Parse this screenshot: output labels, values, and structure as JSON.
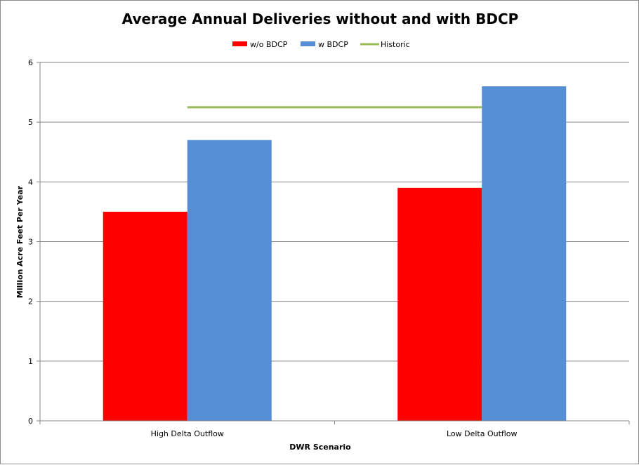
{
  "chart_data": {
    "type": "bar",
    "title": "Average Annual Deliveries without and with BDCP",
    "xlabel": "DWR Scenario",
    "ylabel": "Million Acre Feet Per Year",
    "categories": [
      "High Delta Outflow",
      "Low Delta Outflow"
    ],
    "series": [
      {
        "name": "w/o BDCP",
        "values": [
          3.5,
          3.9
        ],
        "color": "#ff0000"
      },
      {
        "name": "w BDCP",
        "values": [
          4.7,
          5.6
        ],
        "color": "#558ed5"
      }
    ],
    "reference_line": {
      "name": "Historic",
      "value": 5.25,
      "color": "#9bbb59"
    },
    "ylim": [
      0,
      6
    ],
    "yticks": [
      "0",
      "1",
      "2",
      "3",
      "4",
      "5",
      "6"
    ],
    "grid": true,
    "legend_position": "top"
  }
}
